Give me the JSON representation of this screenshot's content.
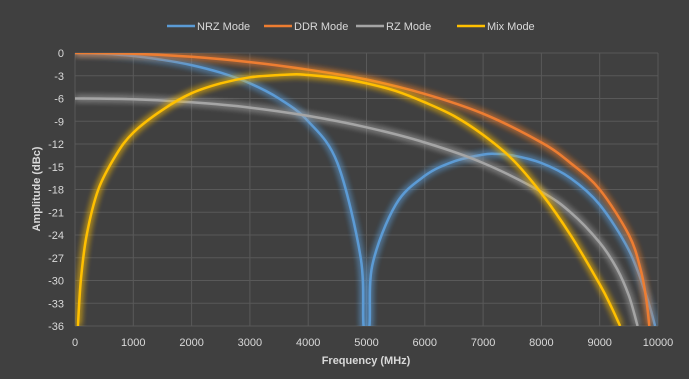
{
  "chart_data": {
    "type": "line",
    "title": "",
    "xlabel": "Frequency (MHz)",
    "ylabel": "Amplitude (dBc)",
    "xlim": [
      0,
      10000
    ],
    "ylim": [
      -36,
      0
    ],
    "x_ticks": [
      0,
      1000,
      2000,
      3000,
      4000,
      5000,
      6000,
      7000,
      8000,
      9000,
      10000
    ],
    "y_ticks": [
      0,
      -3,
      -6,
      -9,
      -12,
      -15,
      -18,
      -21,
      -24,
      -27,
      -30,
      -33,
      -36
    ],
    "grid": true,
    "legend": "top",
    "background": "#404040",
    "series": [
      {
        "name": "NRZ Mode",
        "color": "#5b9bd5",
        "x": [
          0,
          500,
          1000,
          1500,
          2000,
          2500,
          3000,
          3500,
          4000,
          4500,
          4900,
          4950,
          5050,
          5100,
          5500,
          6000,
          6500,
          7000,
          7200,
          7500,
          8000,
          8500,
          9000,
          9500,
          9800,
          9950
        ],
        "y": [
          0,
          -0.1,
          -0.4,
          -0.9,
          -1.6,
          -2.6,
          -4.0,
          -6.0,
          -9.0,
          -14.5,
          -27.0,
          -36.0,
          -36.0,
          -28.0,
          -20.0,
          -16.2,
          -14.3,
          -13.4,
          -13.3,
          -13.5,
          -14.5,
          -16.5,
          -20.0,
          -26.0,
          -32.0,
          -36.0
        ]
      },
      {
        "name": "DDR Mode",
        "color": "#ed7d31",
        "x": [
          0,
          1000,
          2000,
          3000,
          4000,
          5000,
          6000,
          7000,
          8000,
          8500,
          9000,
          9500,
          9700,
          9800,
          9850
        ],
        "y": [
          0,
          -0.1,
          -0.5,
          -1.2,
          -2.2,
          -3.5,
          -5.4,
          -8.0,
          -11.8,
          -14.5,
          -18.0,
          -24.0,
          -28.5,
          -32.5,
          -36.0
        ]
      },
      {
        "name": "RZ Mode",
        "color": "#a5a5a5",
        "x": [
          0,
          1000,
          2000,
          3000,
          4000,
          5000,
          6000,
          7000,
          8000,
          8500,
          9000,
          9300,
          9500,
          9650
        ],
        "y": [
          -6.0,
          -6.1,
          -6.5,
          -7.2,
          -8.3,
          -9.8,
          -11.8,
          -14.5,
          -18.3,
          -21.0,
          -25.0,
          -28.5,
          -32.0,
          -36.0
        ]
      },
      {
        "name": "Mix Mode",
        "color": "#ffc000",
        "x": [
          50,
          100,
          200,
          400,
          700,
          1000,
          1500,
          2000,
          2500,
          3000,
          3500,
          3800,
          4000,
          4500,
          5000,
          5500,
          6000,
          6500,
          7000,
          7500,
          8000,
          8500,
          9000,
          9200,
          9350
        ],
        "y": [
          -36.0,
          -30.0,
          -24.0,
          -18.0,
          -13.5,
          -10.5,
          -7.5,
          -5.3,
          -4.0,
          -3.2,
          -2.9,
          -2.8,
          -2.9,
          -3.3,
          -4.0,
          -5.0,
          -6.5,
          -8.3,
          -10.8,
          -14.0,
          -18.5,
          -24.0,
          -30.5,
          -33.5,
          -36.0
        ]
      }
    ]
  }
}
